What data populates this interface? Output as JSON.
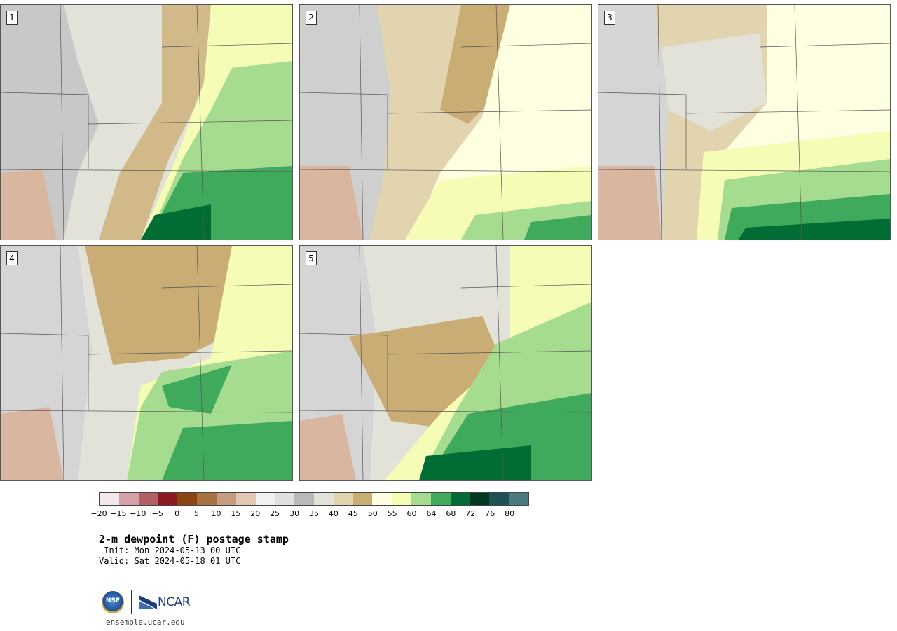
{
  "panels": [
    {
      "label": "1"
    },
    {
      "label": "2"
    },
    {
      "label": "3"
    },
    {
      "label": "4"
    },
    {
      "label": "5"
    }
  ],
  "colorbar": {
    "colors": [
      "#f3e9ea",
      "#d4a1a8",
      "#b35f68",
      "#8c1a23",
      "#8a4512",
      "#a87244",
      "#c69c7e",
      "#e2c8b4",
      "#f1f1f1",
      "#e0e0e0",
      "#b9b9b9",
      "#e2e2d8",
      "#e2d4ae",
      "#c9ad74",
      "#fefee0",
      "#f4fcb5",
      "#a6dc90",
      "#40aa5c",
      "#016d35",
      "#013a20",
      "#1b5356",
      "#4d7a7f"
    ],
    "ticks": [
      "−20",
      "−15",
      "−10",
      "−5",
      "0",
      "5",
      "10",
      "15",
      "20",
      "25",
      "30",
      "35",
      "40",
      "45",
      "50",
      "55",
      "60",
      "64",
      "68",
      "72",
      "76",
      "80"
    ]
  },
  "title": "2-m dewpoint (F) postage stamp",
  "init": " Init: Mon 2024-05-13 00 UTC",
  "valid": "Valid: Sat 2024-05-18 01 UTC",
  "logo": {
    "nsf": "NSF",
    "ncar": "NCAR"
  },
  "site": "ensemble.ucar.edu"
}
